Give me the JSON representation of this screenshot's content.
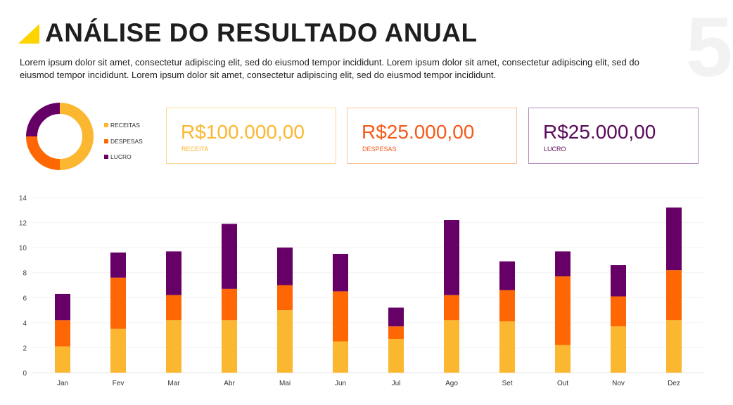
{
  "header": {
    "title": "ANÁLISE DO RESULTADO ANUAL",
    "page_number": "5",
    "description": "Lorem ipsum dolor sit amet, consectetur adipiscing elit, sed do eiusmod tempor incididunt. Lorem ipsum dolor sit amet, consectetur adipiscing elit, sed do eiusmod tempor incididunt. Lorem ipsum dolor sit amet, consectetur adipiscing elit, sed do eiusmod tempor incididunt."
  },
  "colors": {
    "receitas": "#fbb730",
    "despesas": "#fe6703",
    "lucro": "#660066",
    "accent": "#fdd400"
  },
  "donut": {
    "legend": [
      "RECEITAS",
      "DESPESAS",
      "LUCRO"
    ],
    "values": [
      50,
      25,
      25
    ]
  },
  "cards": [
    {
      "value": "R$100.000,00",
      "label": "RECEITA"
    },
    {
      "value": "R$25.000,00",
      "label": "DESPESAS"
    },
    {
      "value": "R$25.000,00",
      "label": "LUCRO"
    }
  ],
  "chart_data": {
    "type": "bar",
    "stacked": true,
    "categories": [
      "Jan",
      "Fev",
      "Mar",
      "Abr",
      "Mai",
      "Jun",
      "Jul",
      "Ago",
      "Set",
      "Out",
      "Nov",
      "Dez"
    ],
    "series": [
      {
        "name": "RECEITAS",
        "values": [
          2.1,
          3.5,
          4.2,
          4.2,
          5.0,
          2.5,
          2.7,
          4.2,
          4.1,
          2.2,
          3.7,
          4.2
        ]
      },
      {
        "name": "DESPESAS",
        "values": [
          2.1,
          4.1,
          2.0,
          2.5,
          2.0,
          4.0,
          1.0,
          2.0,
          2.5,
          5.5,
          2.4,
          4.0
        ]
      },
      {
        "name": "LUCRO",
        "values": [
          2.1,
          2.0,
          3.5,
          5.2,
          3.0,
          3.0,
          1.5,
          6.0,
          2.3,
          2.0,
          2.5,
          5.0
        ]
      }
    ],
    "yticks": [
      0,
      2,
      4,
      6,
      8,
      10,
      12,
      14
    ],
    "ylim": [
      0,
      14
    ],
    "grid": true,
    "title": "",
    "xlabel": "",
    "ylabel": ""
  }
}
